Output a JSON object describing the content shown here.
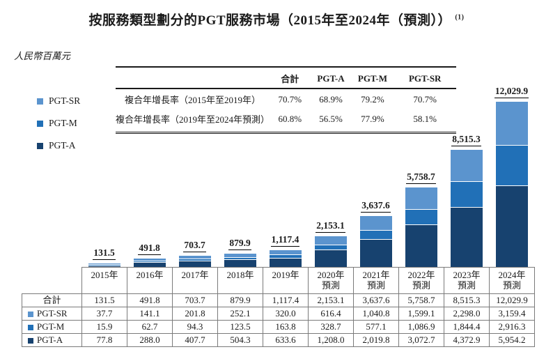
{
  "title": {
    "text": "按服務類型劃分的PGT服務市場（2015年至2024年（預測））",
    "superscript": "(1)"
  },
  "unit_label": "人民幣百萬元",
  "colors": {
    "pgt_sr": "#5b94ce",
    "pgt_m": "#2170b7",
    "pgt_a": "#17426f",
    "table_border": "#7a7a7a",
    "rule": "#1a1a1a"
  },
  "legend": {
    "items": [
      {
        "label": "PGT-SR",
        "color": "#5b94ce"
      },
      {
        "label": "PGT-M",
        "color": "#2170b7"
      },
      {
        "label": "PGT-A",
        "color": "#17426f"
      }
    ]
  },
  "cagr_table": {
    "columns": [
      "合計",
      "PGT-A",
      "PGT-M",
      "PGT-SR"
    ],
    "rows": [
      {
        "label": "複合年增長率（2015年至2019年）",
        "values": [
          "70.7%",
          "68.9%",
          "79.2%",
          "70.7%"
        ]
      },
      {
        "label": "複合年增長率（2019年至2024年預測）",
        "values": [
          "60.8%",
          "56.5%",
          "77.9%",
          "58.1%"
        ]
      }
    ]
  },
  "chart_data": {
    "type": "bar",
    "stacked": true,
    "title": "按服務類型劃分的PGT服務市場（2015年至2024年（預測））(1)",
    "ylabel": "人民幣百萬元",
    "ylim": [
      0,
      12029.9
    ],
    "grid": false,
    "legend_position": "left",
    "categories": [
      "2015年",
      "2016年",
      "2017年",
      "2018年",
      "2019年",
      "2020年預測",
      "2021年預測",
      "2022年預測",
      "2023年預測",
      "2024年預測"
    ],
    "series": [
      {
        "name": "PGT-A",
        "color": "#17426f",
        "values": [
          77.8,
          288.0,
          407.7,
          504.3,
          633.6,
          1208.0,
          2019.8,
          3072.7,
          4372.9,
          5954.2
        ]
      },
      {
        "name": "PGT-M",
        "color": "#2170b7",
        "values": [
          15.9,
          62.7,
          94.3,
          123.5,
          163.8,
          328.7,
          577.1,
          1086.9,
          1844.4,
          2916.3
        ]
      },
      {
        "name": "PGT-SR",
        "color": "#5b94ce",
        "values": [
          37.7,
          141.1,
          201.8,
          252.1,
          320.0,
          616.4,
          1040.8,
          1599.1,
          2298.0,
          3159.4
        ]
      }
    ],
    "totals": [
      131.5,
      491.8,
      703.7,
      879.9,
      1117.4,
      2153.1,
      3637.6,
      5758.7,
      8515.3,
      12029.9
    ],
    "total_labels": [
      "131.5",
      "491.8",
      "703.7",
      "879.9",
      "1,117.4",
      "2,153.1",
      "3,637.6",
      "5,758.7",
      "8,515.3",
      "12,029.9"
    ]
  },
  "bottom_table": {
    "year_headers": [
      {
        "line1": "2015年",
        "line2": ""
      },
      {
        "line1": "2016年",
        "line2": ""
      },
      {
        "line1": "2017年",
        "line2": ""
      },
      {
        "line1": "2018年",
        "line2": ""
      },
      {
        "line1": "2019年",
        "line2": ""
      },
      {
        "line1": "2020年",
        "line2": "預測"
      },
      {
        "line1": "2021年",
        "line2": "預測"
      },
      {
        "line1": "2022年",
        "line2": "預測"
      },
      {
        "line1": "2023年",
        "line2": "預測"
      },
      {
        "line1": "2024年",
        "line2": "預測"
      }
    ],
    "rows": [
      {
        "label": "合計",
        "swatch": null,
        "values": [
          "131.5",
          "491.8",
          "703.7",
          "879.9",
          "1,117.4",
          "2,153.1",
          "3,637.6",
          "5,758.7",
          "8,515.3",
          "12,029.9"
        ]
      },
      {
        "label": "PGT-SR",
        "swatch": "#5b94ce",
        "values": [
          "37.7",
          "141.1",
          "201.8",
          "252.1",
          "320.0",
          "616.4",
          "1,040.8",
          "1,599.1",
          "2,298.0",
          "3,159.4"
        ]
      },
      {
        "label": "PGT-M",
        "swatch": "#2170b7",
        "values": [
          "15.9",
          "62.7",
          "94.3",
          "123.5",
          "163.8",
          "328.7",
          "577.1",
          "1,086.9",
          "1,844.4",
          "2,916.3"
        ]
      },
      {
        "label": "PGT-A",
        "swatch": "#17426f",
        "values": [
          "77.8",
          "288.0",
          "407.7",
          "504.3",
          "633.6",
          "1,208.0",
          "2,019.8",
          "3,072.7",
          "4,372.9",
          "5,954.2"
        ]
      }
    ]
  }
}
